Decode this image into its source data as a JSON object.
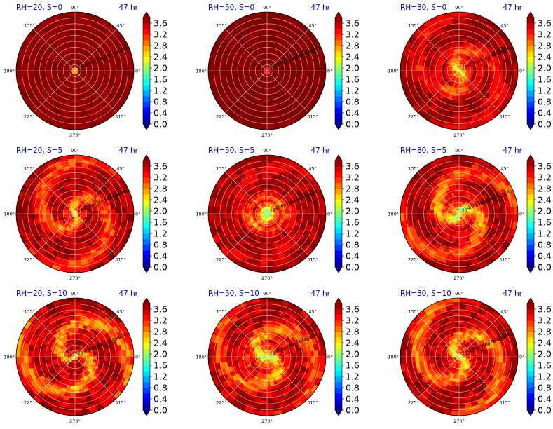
{
  "chart_data": {
    "type": "heatmap",
    "projection": "polar",
    "colormap": "jet",
    "angle_ticks": [
      "0°",
      "45°",
      "90°",
      "135°",
      "180°",
      "225°",
      "270°",
      "315°"
    ],
    "radial_ticks": [
      "20",
      "40",
      "60",
      "80",
      "100",
      "120",
      "140",
      "160",
      "180"
    ],
    "colorbar": {
      "ticks": [
        "0.0",
        "0.4",
        "0.8",
        "1.2",
        "1.6",
        "2.0",
        "2.4",
        "2.8",
        "3.2",
        "3.6"
      ],
      "vmin": 0,
      "vmax": 3.8,
      "extend": "both"
    },
    "panels": [
      {
        "title": "RH=20, S=0",
        "time": "47 hr"
      },
      {
        "title": "RH=50, S=0",
        "time": "47 hr"
      },
      {
        "title": "RH=80, S=0",
        "time": "47 hr"
      },
      {
        "title": "RH=20, S=5",
        "time": "47 hr"
      },
      {
        "title": "RH=50, S=5",
        "time": "47 hr"
      },
      {
        "title": "RH=80, S=5",
        "time": "47 hr"
      },
      {
        "title": "RH=20, S=10",
        "time": "47 hr"
      },
      {
        "title": "RH=50, S=10",
        "time": "47 hr"
      },
      {
        "title": "RH=80, S=10",
        "time": "47 hr"
      }
    ]
  },
  "colors": {
    "title": "#0000cc",
    "grid": "#ffffff",
    "background_field": "#800000"
  }
}
